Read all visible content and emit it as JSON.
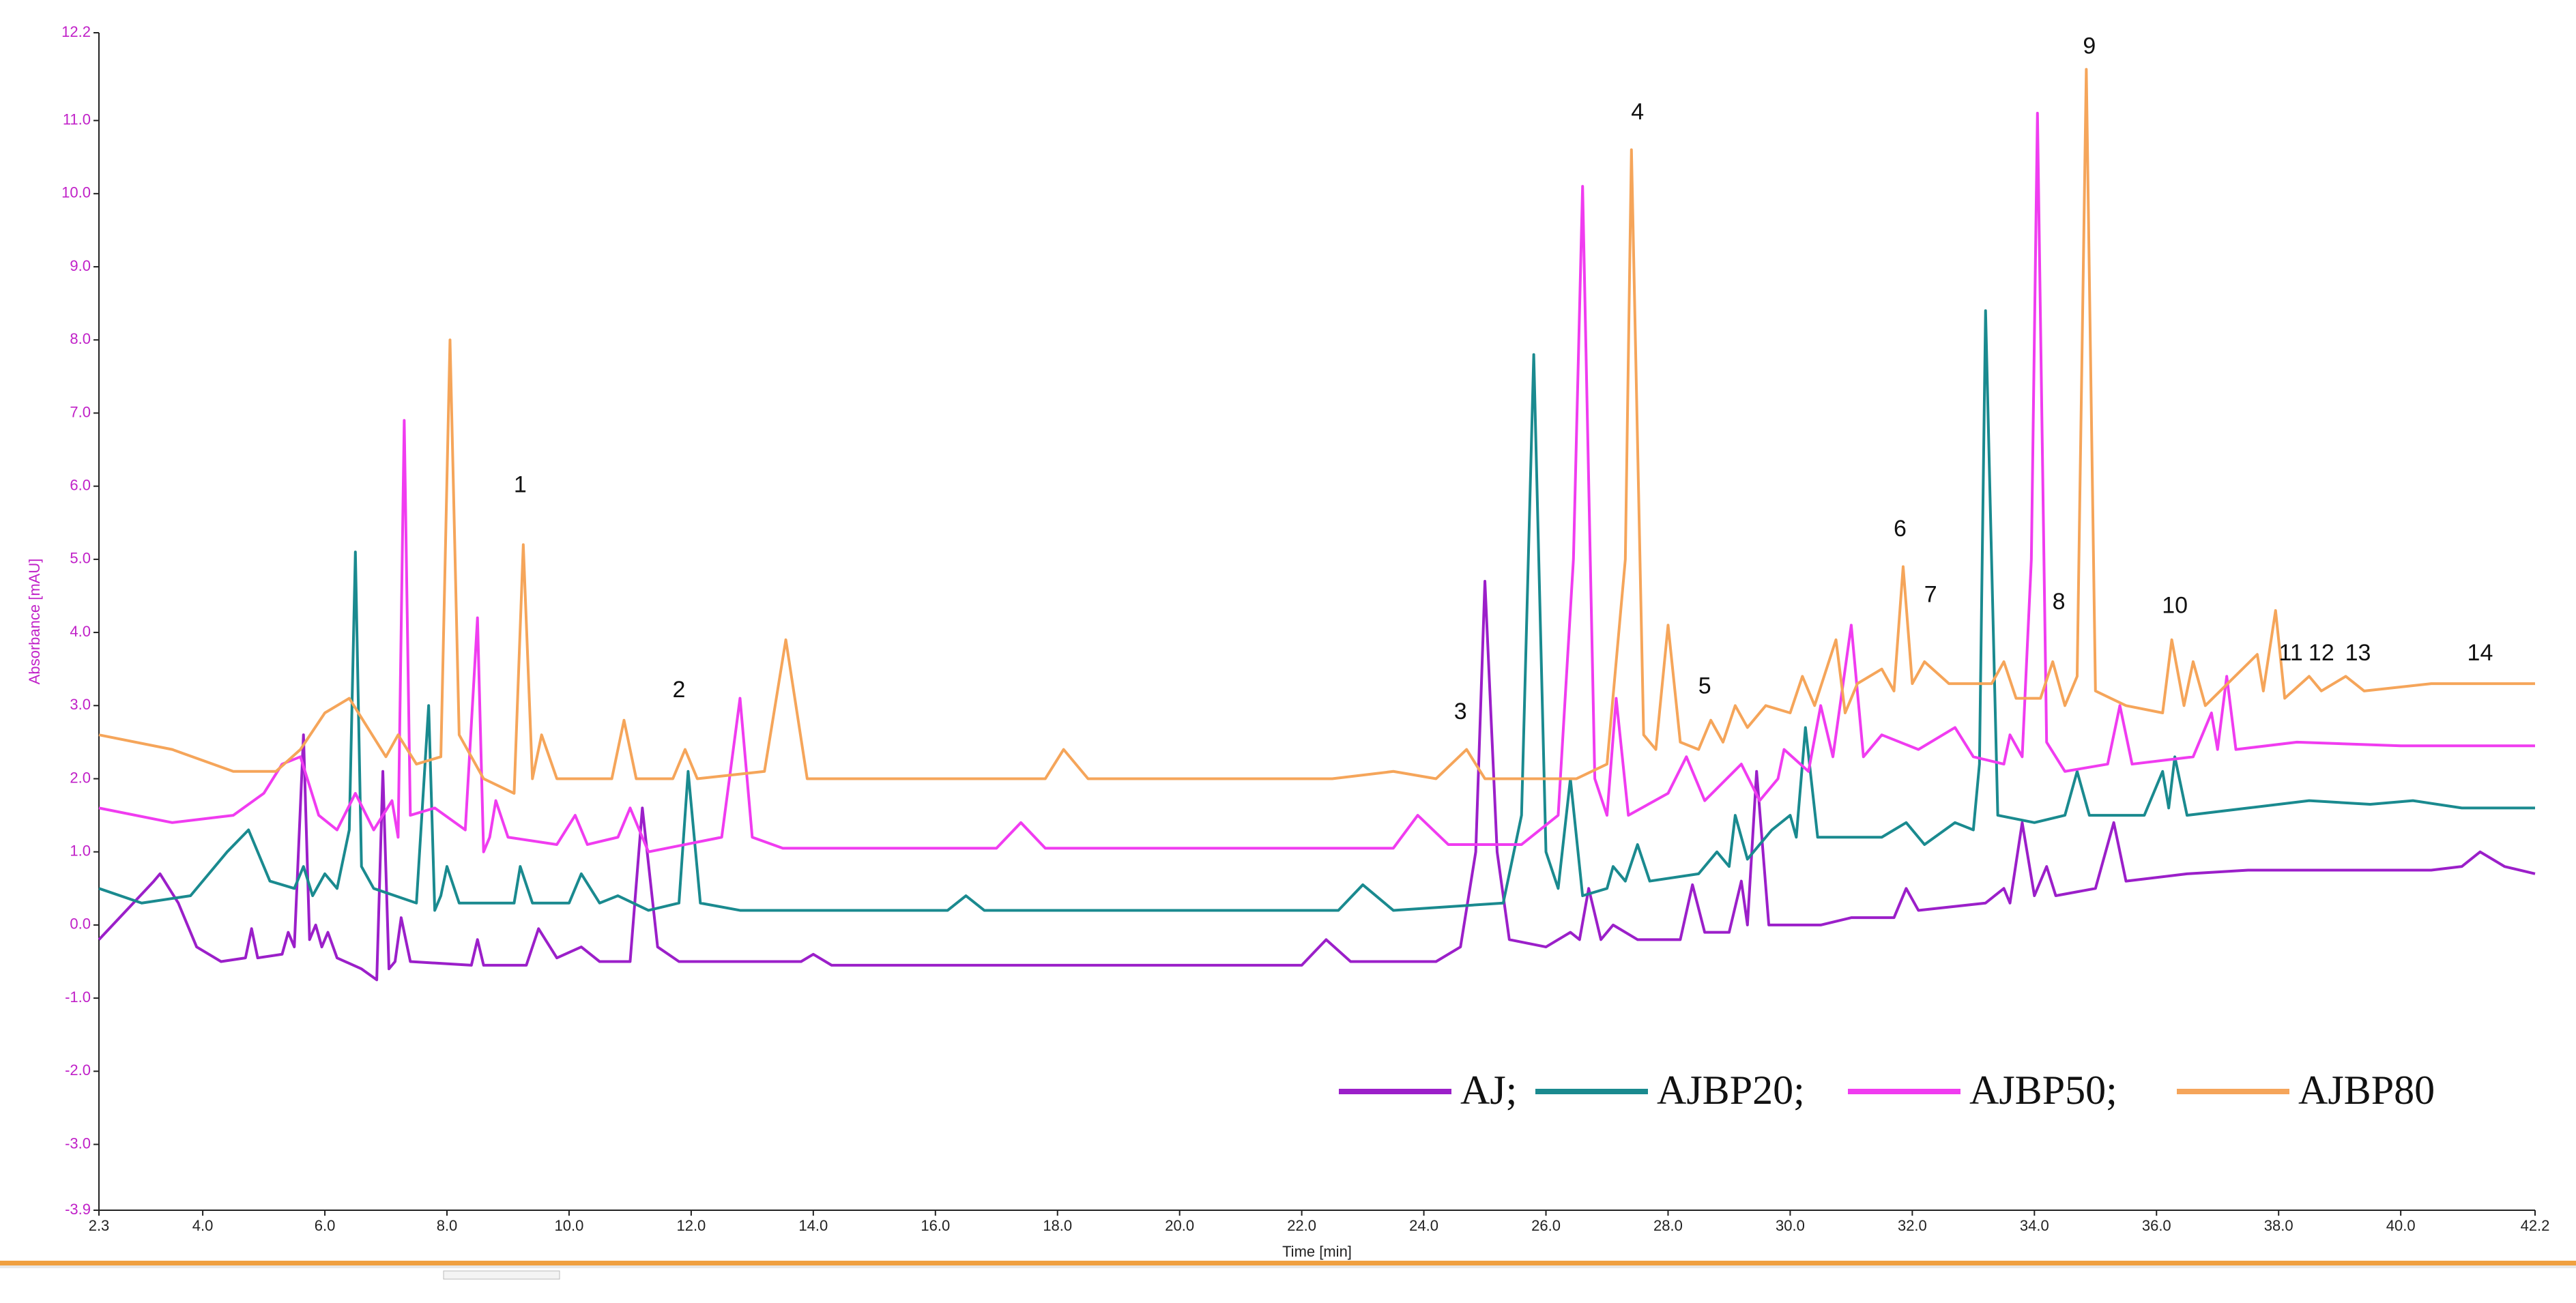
{
  "chart_data": {
    "type": "line",
    "x_label": "Time [min]",
    "y_label": "Absorbance [mAU]",
    "xlim": [
      2.3,
      42.2
    ],
    "ylim": [
      -3.9,
      12.2
    ],
    "xticks": [
      2.3,
      {
        "value": 4,
        "label": "4.0"
      },
      {
        "value": 6,
        "label": "6.0"
      },
      {
        "value": 8,
        "label": "8.0"
      },
      {
        "value": 10,
        "label": "10.0"
      },
      {
        "value": 12,
        "label": "12.0"
      },
      {
        "value": 14,
        "label": "14.0"
      },
      {
        "value": 16,
        "label": "16.0"
      },
      {
        "value": 18,
        "label": "18.0"
      },
      {
        "value": 20,
        "label": "20.0"
      },
      {
        "value": 22,
        "label": "22.0"
      },
      {
        "value": 24,
        "label": "24.0"
      },
      {
        "value": 26,
        "label": "26.0"
      },
      {
        "value": 28,
        "label": "28.0"
      },
      {
        "value": 30,
        "label": "30.0"
      },
      {
        "value": 32,
        "label": "32.0"
      },
      {
        "value": 34,
        "label": "34.0"
      },
      {
        "value": 36,
        "label": "36.0"
      },
      {
        "value": 38,
        "label": "38.0"
      },
      {
        "value": 40,
        "label": "40.0"
      },
      42.2
    ],
    "yticks": [
      -3.9,
      {
        "value": -3,
        "label": "-3.0"
      },
      {
        "value": -2,
        "label": "-2.0"
      },
      {
        "value": -1,
        "label": "-1.0"
      },
      {
        "value": 0,
        "label": "0.0"
      },
      {
        "value": 1,
        "label": "1.0"
      },
      {
        "value": 2,
        "label": "2.0"
      },
      {
        "value": 3,
        "label": "3.0"
      },
      {
        "value": 4,
        "label": "4.0"
      },
      {
        "value": 5,
        "label": "5.0"
      },
      {
        "value": 6,
        "label": "6.0"
      },
      {
        "value": 7,
        "label": "7.0"
      },
      {
        "value": 8,
        "label": "8.0"
      },
      {
        "value": 9,
        "label": "9.0"
      },
      {
        "value": 10,
        "label": "10.0"
      },
      {
        "value": 11,
        "label": "11.0"
      },
      12.2
    ],
    "series": [
      {
        "name": "AJ;",
        "color": "#9b1fc9",
        "x": [
          2.3,
          3.2,
          3.3,
          3.6,
          3.9,
          4.3,
          4.7,
          4.8,
          4.9,
          5.3,
          5.4,
          5.5,
          5.65,
          5.75,
          5.85,
          5.95,
          6.05,
          6.2,
          6.6,
          6.85,
          6.95,
          7.05,
          7.15,
          7.25,
          7.4,
          8.4,
          8.5,
          8.6,
          9.3,
          9.5,
          9.8,
          10.2,
          10.5,
          11.0,
          11.2,
          11.45,
          11.8,
          13.8,
          14.0,
          14.3,
          22.0,
          22.4,
          22.8,
          24.2,
          24.6,
          24.85,
          25.0,
          25.2,
          25.4,
          26.0,
          26.4,
          26.55,
          26.7,
          26.9,
          27.1,
          27.5,
          28.2,
          28.4,
          28.6,
          29.0,
          29.2,
          29.3,
          29.45,
          29.65,
          30.5,
          31.0,
          31.7,
          31.9,
          32.1,
          33.2,
          33.5,
          33.6,
          33.8,
          34.0,
          34.2,
          34.35,
          35.0,
          35.3,
          35.5,
          36.5,
          37.5,
          39.0,
          40.5,
          41.0,
          41.3,
          41.7,
          42.2
        ],
        "values": [
          -0.2,
          0.6,
          0.7,
          0.3,
          -0.3,
          -0.5,
          -0.45,
          -0.05,
          -0.45,
          -0.4,
          -0.1,
          -0.3,
          2.6,
          -0.2,
          0.0,
          -0.3,
          -0.1,
          -0.45,
          -0.6,
          -0.75,
          2.1,
          -0.6,
          -0.5,
          0.1,
          -0.5,
          -0.55,
          -0.2,
          -0.55,
          -0.55,
          -0.05,
          -0.45,
          -0.3,
          -0.5,
          -0.5,
          1.6,
          -0.3,
          -0.5,
          -0.5,
          -0.4,
          -0.55,
          -0.55,
          -0.2,
          -0.5,
          -0.5,
          -0.3,
          1.0,
          4.7,
          1.0,
          -0.2,
          -0.3,
          -0.1,
          -0.2,
          0.5,
          -0.2,
          0.0,
          -0.2,
          -0.2,
          0.55,
          -0.1,
          -0.1,
          0.6,
          0.0,
          2.1,
          0.0,
          0.0,
          0.1,
          0.1,
          0.5,
          0.2,
          0.3,
          0.5,
          0.3,
          1.4,
          0.4,
          0.8,
          0.4,
          0.5,
          1.4,
          0.6,
          0.7,
          0.75,
          0.75,
          0.75,
          0.8,
          1.0,
          0.8,
          0.7
        ]
      },
      {
        "name": "AJBP20;",
        "color": "#1a8a8f",
        "x": [
          2.3,
          3.0,
          3.8,
          4.4,
          4.75,
          5.1,
          5.5,
          5.65,
          5.8,
          6.0,
          6.2,
          6.4,
          6.5,
          6.6,
          6.8,
          7.5,
          7.7,
          7.8,
          7.9,
          8.0,
          8.2,
          9.1,
          9.2,
          9.4,
          10.0,
          10.2,
          10.5,
          10.8,
          11.3,
          11.8,
          11.95,
          12.15,
          12.8,
          16.2,
          16.5,
          16.8,
          22.6,
          23.0,
          23.5,
          25.3,
          25.6,
          25.8,
          26.0,
          26.2,
          26.4,
          26.6,
          27.0,
          27.1,
          27.3,
          27.5,
          27.7,
          28.5,
          28.8,
          29.0,
          29.1,
          29.3,
          29.7,
          30.0,
          30.1,
          30.25,
          30.45,
          31.5,
          31.9,
          32.2,
          32.7,
          33.0,
          33.1,
          33.2,
          33.4,
          34.0,
          34.5,
          34.7,
          34.9,
          35.8,
          36.1,
          36.2,
          36.3,
          36.5,
          37.5,
          38.5,
          39.5,
          40.2,
          41.0,
          42.2
        ],
        "values": [
          0.5,
          0.3,
          0.4,
          1.0,
          1.3,
          0.6,
          0.5,
          0.8,
          0.4,
          0.7,
          0.5,
          1.3,
          5.1,
          0.8,
          0.5,
          0.3,
          3.0,
          0.2,
          0.4,
          0.8,
          0.3,
          0.3,
          0.8,
          0.3,
          0.3,
          0.7,
          0.3,
          0.4,
          0.2,
          0.3,
          2.1,
          0.3,
          0.2,
          0.2,
          0.4,
          0.2,
          0.2,
          0.55,
          0.2,
          0.3,
          1.5,
          7.8,
          1.0,
          0.5,
          2.0,
          0.4,
          0.5,
          0.8,
          0.6,
          1.1,
          0.6,
          0.7,
          1.0,
          0.8,
          1.5,
          0.9,
          1.3,
          1.5,
          1.2,
          2.7,
          1.2,
          1.2,
          1.4,
          1.1,
          1.4,
          1.3,
          2.2,
          8.4,
          1.5,
          1.4,
          1.5,
          2.1,
          1.5,
          1.5,
          2.1,
          1.6,
          2.3,
          1.5,
          1.6,
          1.7,
          1.65,
          1.7,
          1.6,
          1.6
        ]
      },
      {
        "name": "AJBP50;",
        "color": "#f03cf0",
        "x": [
          2.3,
          3.5,
          4.5,
          5.0,
          5.3,
          5.6,
          5.9,
          6.2,
          6.5,
          6.8,
          7.1,
          7.2,
          7.3,
          7.4,
          7.8,
          8.3,
          8.5,
          8.6,
          8.7,
          8.8,
          9.0,
          9.8,
          10.1,
          10.3,
          10.8,
          11.0,
          11.3,
          12.5,
          12.8,
          13.0,
          13.5,
          17.0,
          17.4,
          17.8,
          23.5,
          23.9,
          24.4,
          25.6,
          26.2,
          26.45,
          26.6,
          26.8,
          27.0,
          27.15,
          27.35,
          28.0,
          28.3,
          28.6,
          29.2,
          29.5,
          29.8,
          29.9,
          30.3,
          30.5,
          30.7,
          31.0,
          31.2,
          31.5,
          32.1,
          32.7,
          33.0,
          33.5,
          33.6,
          33.8,
          33.95,
          34.05,
          34.2,
          34.5,
          35.2,
          35.4,
          35.6,
          36.6,
          36.9,
          37.0,
          37.15,
          37.3,
          38.3,
          40.0,
          42.2
        ],
        "values": [
          1.6,
          1.4,
          1.5,
          1.8,
          2.2,
          2.3,
          1.5,
          1.3,
          1.8,
          1.3,
          1.7,
          1.2,
          6.9,
          1.5,
          1.6,
          1.3,
          4.2,
          1.0,
          1.2,
          1.7,
          1.2,
          1.1,
          1.5,
          1.1,
          1.2,
          1.6,
          1.0,
          1.2,
          3.1,
          1.2,
          1.05,
          1.05,
          1.4,
          1.05,
          1.05,
          1.5,
          1.1,
          1.1,
          1.5,
          5.0,
          10.1,
          2.0,
          1.5,
          3.1,
          1.5,
          1.8,
          2.3,
          1.7,
          2.2,
          1.7,
          2.0,
          2.4,
          2.1,
          3.0,
          2.3,
          4.1,
          2.3,
          2.6,
          2.4,
          2.7,
          2.3,
          2.2,
          2.6,
          2.3,
          5.0,
          11.1,
          2.5,
          2.1,
          2.2,
          3.0,
          2.2,
          2.3,
          2.9,
          2.4,
          3.4,
          2.4,
          2.5,
          2.45,
          2.45
        ]
      },
      {
        "name": "AJBP80",
        "color": "#f5a55a",
        "x": [
          2.3,
          3.5,
          4.5,
          5.2,
          5.6,
          6.0,
          6.4,
          6.7,
          7.0,
          7.2,
          7.5,
          7.9,
          8.05,
          8.2,
          8.6,
          9.1,
          9.25,
          9.4,
          9.55,
          9.8,
          10.7,
          10.9,
          11.1,
          11.7,
          11.9,
          12.1,
          13.2,
          13.55,
          13.9,
          17.8,
          18.1,
          18.5,
          22.5,
          23.5,
          24.2,
          24.7,
          25.0,
          26.5,
          27.0,
          27.3,
          27.4,
          27.6,
          27.8,
          28.0,
          28.2,
          28.5,
          28.7,
          28.9,
          29.1,
          29.3,
          29.6,
          30.0,
          30.2,
          30.4,
          30.75,
          30.9,
          31.1,
          31.5,
          31.7,
          31.85,
          32.0,
          32.2,
          32.6,
          33.3,
          33.5,
          33.7,
          34.1,
          34.3,
          34.5,
          34.7,
          34.85,
          35.0,
          35.5,
          36.1,
          36.25,
          36.45,
          36.6,
          36.8,
          37.65,
          37.75,
          37.95,
          38.1,
          38.5,
          38.7,
          39.1,
          39.4,
          40.5,
          42.2
        ],
        "values": [
          2.6,
          2.4,
          2.1,
          2.1,
          2.4,
          2.9,
          3.1,
          2.7,
          2.3,
          2.6,
          2.2,
          2.3,
          8.0,
          2.6,
          2.0,
          1.8,
          5.2,
          2.0,
          2.6,
          2.0,
          2.0,
          2.8,
          2.0,
          2.0,
          2.4,
          2.0,
          2.1,
          3.9,
          2.0,
          2.0,
          2.4,
          2.0,
          2.0,
          2.1,
          2.0,
          2.4,
          2.0,
          2.0,
          2.2,
          5.0,
          10.6,
          2.6,
          2.4,
          4.1,
          2.5,
          2.4,
          2.8,
          2.5,
          3.0,
          2.7,
          3.0,
          2.9,
          3.4,
          3.0,
          3.9,
          2.9,
          3.3,
          3.5,
          3.2,
          4.9,
          3.3,
          3.6,
          3.3,
          3.3,
          3.6,
          3.1,
          3.1,
          3.6,
          3.0,
          3.4,
          11.7,
          3.2,
          3.0,
          2.9,
          3.9,
          3.0,
          3.6,
          3.0,
          3.7,
          3.2,
          4.3,
          3.1,
          3.4,
          3.2,
          3.4,
          3.2,
          3.3,
          3.3
        ]
      }
    ],
    "annotations": [
      {
        "text": "1",
        "x": 9.2,
        "y": 6.0
      },
      {
        "text": "2",
        "x": 11.8,
        "y": 3.2
      },
      {
        "text": "3",
        "x": 24.6,
        "y": 2.9
      },
      {
        "text": "4",
        "x": 27.5,
        "y": 11.1
      },
      {
        "text": "5",
        "x": 28.6,
        "y": 3.25
      },
      {
        "text": "6",
        "x": 31.8,
        "y": 5.4
      },
      {
        "text": "7",
        "x": 32.3,
        "y": 4.5
      },
      {
        "text": "8",
        "x": 34.4,
        "y": 4.4
      },
      {
        "text": "9",
        "x": 34.9,
        "y": 12.0
      },
      {
        "text": "10",
        "x": 36.3,
        "y": 4.35
      },
      {
        "text": "11",
        "x": 38.2,
        "y": 3.7
      },
      {
        "text": "12",
        "x": 38.7,
        "y": 3.7
      },
      {
        "text": "13",
        "x": 39.3,
        "y": 3.7
      },
      {
        "text": "14",
        "x": 41.3,
        "y": 3.7
      }
    ]
  }
}
